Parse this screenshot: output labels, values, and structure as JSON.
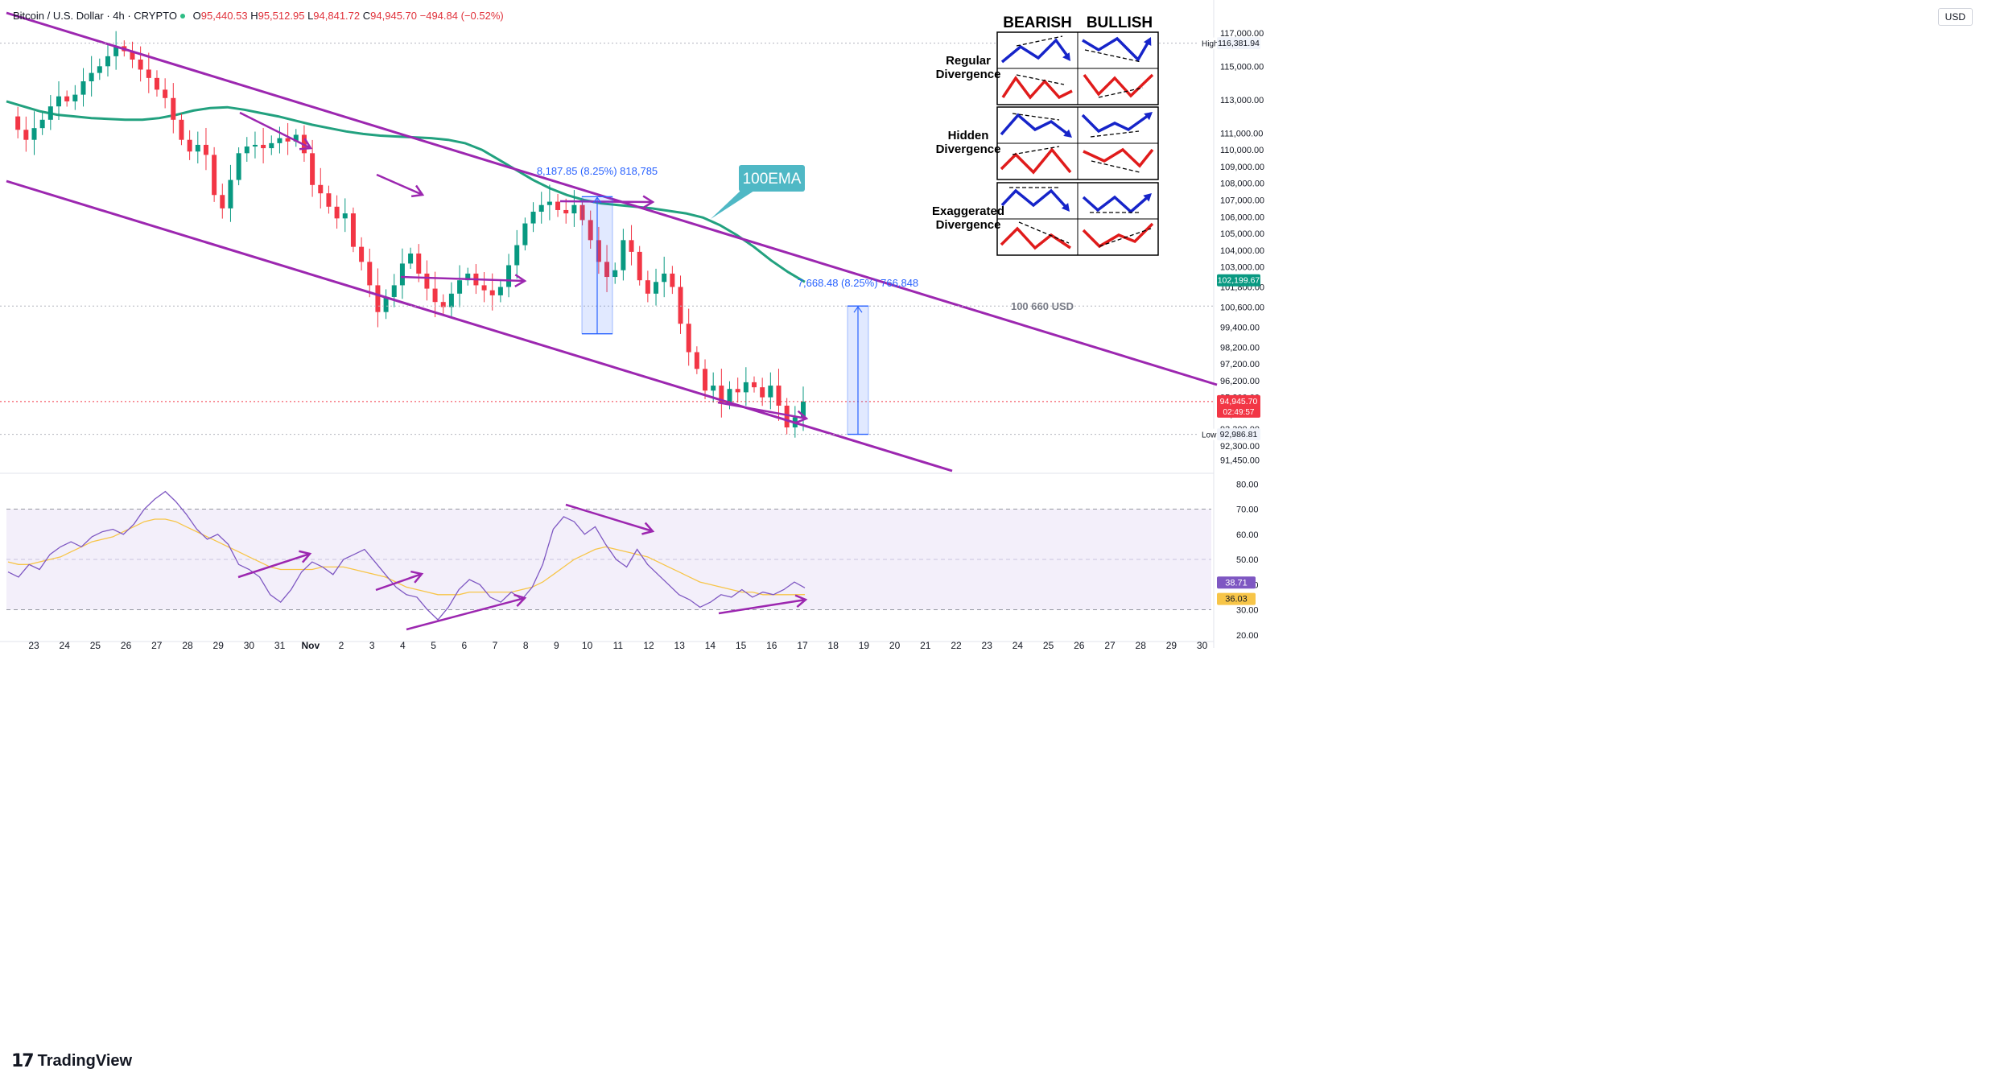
{
  "header": {
    "symbol": "Bitcoin / U.S. Dollar · 4h · CRYPTO",
    "open_label": "O",
    "open": "95,440.53",
    "high_label": "H",
    "high": "95,512.95",
    "low_label": "L",
    "low": "94,841.72",
    "close_label": "C",
    "close": "94,945.70",
    "change": "−494.84 (−0.52%)"
  },
  "currency": "USD",
  "brand": "TradingView",
  "chart_data": {
    "type": "candlestick",
    "timeframe": "4h",
    "x_ticks": [
      "23",
      "24",
      "25",
      "26",
      "27",
      "28",
      "29",
      "30",
      "31",
      "Nov",
      "2",
      "3",
      "4",
      "5",
      "6",
      "7",
      "8",
      "9",
      "10",
      "11",
      "12",
      "13",
      "14",
      "15",
      "16",
      "17",
      "18",
      "19",
      "20",
      "21",
      "22",
      "23",
      "24",
      "25",
      "26",
      "27",
      "28",
      "29",
      "30"
    ],
    "price_ticks": [
      "117,000.00",
      "115,000.00",
      "113,000.00",
      "111,000.00",
      "110,000.00",
      "109,000.00",
      "108,000.00",
      "107,000.00",
      "106,000.00",
      "105,000.00",
      "104,000.00",
      "103,000.00",
      "101,800.00",
      "100,600.00",
      "99,400.00",
      "98,200.00",
      "97,200.00",
      "96,200.00",
      "95,200.00",
      "94,200.00",
      "93,300.00",
      "92,300.00",
      "91,450.00"
    ],
    "price_range": [
      90800,
      118000
    ],
    "close_path": [
      112000,
      111200,
      110600,
      111300,
      111800,
      112600,
      113200,
      112900,
      113300,
      114100,
      114600,
      115000,
      115600,
      116200,
      115900,
      115400,
      114800,
      114300,
      113600,
      113100,
      111800,
      110600,
      109900,
      110300,
      109700,
      107300,
      106500,
      108200,
      109800,
      110200,
      110300,
      110100,
      110400,
      110700,
      110500,
      110900,
      109800,
      107900,
      107400,
      106600,
      105900,
      106200,
      104200,
      103300,
      101900,
      100300,
      101200,
      101900,
      103200,
      103800,
      102600,
      101700,
      100900,
      100600,
      101400,
      102200,
      102600,
      101900,
      101600,
      101300,
      101800,
      103100,
      104300,
      105600,
      106300,
      106700,
      106900,
      106400,
      106200,
      106700,
      105800,
      104600,
      103300,
      102400,
      102800,
      104600,
      103900,
      102200,
      101400,
      102100,
      102600,
      101800,
      99600,
      97900,
      96900,
      95600,
      95900,
      94900,
      95700,
      95500,
      96100,
      95800,
      95200,
      95900,
      94700,
      93400,
      94000,
      94945.7
    ],
    "ema100": {
      "label": "100EMA",
      "path": [
        112900,
        112600,
        112300,
        112100,
        112000,
        111900,
        111850,
        111800,
        111800,
        111900,
        112100,
        112350,
        112500,
        112550,
        112400,
        112200,
        112000,
        111750,
        111500,
        111300,
        111100,
        110950,
        110850,
        110800,
        110750,
        110700,
        110600,
        110400,
        110000,
        109400,
        108800,
        108200,
        107700,
        107300,
        107000,
        106800,
        106700,
        106600,
        106500,
        106350,
        106200,
        105950,
        105500,
        104900,
        104200,
        103400,
        102700,
        102100
      ]
    },
    "rsi": {
      "ticks": [
        "80.00",
        "70.00",
        "60.00",
        "50.00",
        "40.00",
        "30.00",
        "20.00"
      ],
      "range": [
        18,
        82
      ],
      "overbought": 70,
      "oversold": 30,
      "rsi_value": "38.71",
      "ma_value": "36.03",
      "rsi_path": [
        45,
        43,
        48,
        46,
        52,
        55,
        57,
        55,
        59,
        61,
        62,
        60,
        64,
        70,
        74,
        77,
        73,
        68,
        62,
        58,
        60,
        56,
        48,
        46,
        43,
        36,
        33,
        38,
        45,
        49,
        47,
        44,
        50,
        52,
        54,
        49,
        44,
        39,
        36,
        35,
        30,
        26,
        31,
        38,
        42,
        40,
        35,
        33,
        37,
        34,
        39,
        48,
        62,
        67,
        65,
        60,
        63,
        56,
        50,
        47,
        54,
        48,
        44,
        40,
        36,
        34,
        31,
        33,
        36,
        35,
        38,
        35,
        37,
        36,
        38,
        41,
        38.71
      ],
      "ma_path": [
        49,
        48,
        48,
        49,
        50,
        51,
        53,
        55,
        57,
        58,
        59,
        61,
        63,
        65,
        66,
        66,
        65,
        63,
        61,
        59,
        57,
        55,
        53,
        51,
        49,
        47,
        46,
        46,
        46,
        46,
        47,
        47,
        47,
        46,
        45,
        44,
        43,
        41,
        39,
        38,
        37,
        36,
        36,
        36,
        37,
        37,
        37,
        37,
        37,
        38,
        39,
        41,
        44,
        47,
        50,
        52,
        54,
        55,
        54,
        53,
        52,
        51,
        49,
        47,
        45,
        43,
        41,
        40,
        39,
        38,
        37,
        37,
        36,
        36,
        36,
        36,
        36.03
      ]
    },
    "measures": [
      {
        "label": "8,187.85 (8.25%) 818,785",
        "from": 99000,
        "to": 107200
      },
      {
        "label": "7,668.48 (8.25%) 766,848",
        "from": 92986.81,
        "to": 100660
      }
    ],
    "level_label": "100 660 USD",
    "level": 100660,
    "price_badges": [
      {
        "tag": "High",
        "value": "116,381.94",
        "color": "#f0f3fa",
        "text_color": "#131722"
      },
      {
        "tag": "",
        "value": "102,199.67",
        "color": "#089981",
        "text_color": "#ffffff"
      },
      {
        "tag": "",
        "value": "94,945.70",
        "sub": "02:49:57",
        "color": "#f23645",
        "text_color": "#ffffff"
      },
      {
        "tag": "Low",
        "value": "92,986.81",
        "color": "#f0f3fa",
        "text_color": "#131722"
      }
    ],
    "rsi_badges": [
      {
        "value": "38.71",
        "color": "#7e57c2"
      },
      {
        "value": "36.03",
        "color": "#f7c548"
      }
    ],
    "legend": {
      "col_bearish": "BEARISH",
      "col_bullish": "BULLISH",
      "rows": [
        "Regular\nDivergence",
        "Hidden\nDivergence",
        "Exaggerated\nDivergence"
      ]
    },
    "colors": {
      "up": "#089981",
      "down": "#f23645",
      "channel": "#9c27b0",
      "ema": "#22a17f",
      "rsi": "#7e57c2",
      "rsi_ma": "#f7c548",
      "rsi_band": "#f3effa",
      "measure": "#2962ff",
      "callout": "#4fb8c5",
      "legend_blue": "#1624c9",
      "legend_red": "#e01b1b"
    }
  }
}
